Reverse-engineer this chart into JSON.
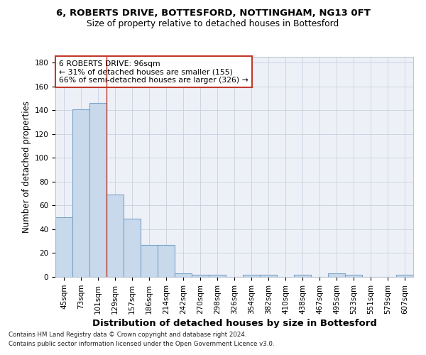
{
  "title1": "6, ROBERTS DRIVE, BOTTESFORD, NOTTINGHAM, NG13 0FT",
  "title2": "Size of property relative to detached houses in Bottesford",
  "xlabel": "Distribution of detached houses by size in Bottesford",
  "ylabel": "Number of detached properties",
  "footnote1": "Contains HM Land Registry data © Crown copyright and database right 2024.",
  "footnote2": "Contains public sector information licensed under the Open Government Licence v3.0.",
  "categories": [
    "45sqm",
    "73sqm",
    "101sqm",
    "129sqm",
    "157sqm",
    "186sqm",
    "214sqm",
    "242sqm",
    "270sqm",
    "298sqm",
    "326sqm",
    "354sqm",
    "382sqm",
    "410sqm",
    "438sqm",
    "467sqm",
    "495sqm",
    "523sqm",
    "551sqm",
    "579sqm",
    "607sqm"
  ],
  "values": [
    50,
    141,
    146,
    69,
    49,
    27,
    27,
    3,
    2,
    2,
    0,
    2,
    2,
    0,
    2,
    0,
    3,
    2,
    0,
    0,
    2
  ],
  "bar_color": "#c9d9ec",
  "bar_edge_color": "#7aa3c8",
  "bar_edge_width": 0.8,
  "grid_color": "#c8d0de",
  "background_color": "#edf1f7",
  "vline_x": 2.5,
  "vline_color": "#c0392b",
  "annotation_text": "6 ROBERTS DRIVE: 96sqm\n← 31% of detached houses are smaller (155)\n66% of semi-detached houses are larger (326) →",
  "annotation_box_color": "#ffffff",
  "annotation_box_edge_color": "#c0392b",
  "ylim": [
    0,
    185
  ],
  "yticks": [
    0,
    20,
    40,
    60,
    80,
    100,
    120,
    140,
    160,
    180
  ],
  "title1_fontsize": 9.5,
  "title2_fontsize": 8.8,
  "ylabel_fontsize": 8.5,
  "xlabel_fontsize": 9.5,
  "tick_fontsize": 7.5,
  "footnote_fontsize": 6.2
}
